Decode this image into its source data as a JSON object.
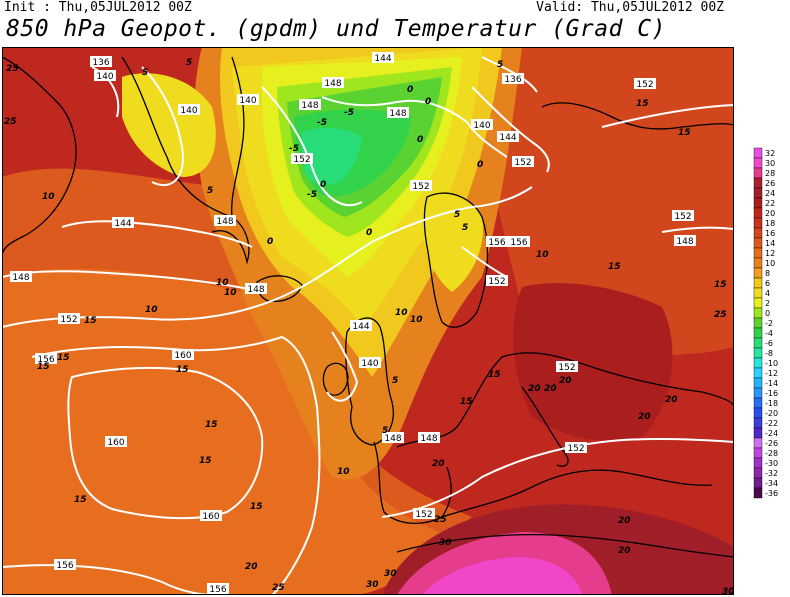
{
  "header": {
    "init": "Init : Thu,05JUL2012 00Z",
    "valid": "Valid: Thu,05JUL2012 00Z",
    "title": "850 hPa Geopot. (gpdm) und Temperatur (Grad C)"
  },
  "colors": {
    "m36": "#4b0a4b",
    "m34": "#6e1e8c",
    "m32": "#8c28aa",
    "m30": "#a032c8",
    "m28": "#be46dc",
    "m26": "#d26ef0",
    "m24": "#5028c8",
    "m22": "#3c3cdc",
    "m20": "#2850f0",
    "m18": "#286ef5",
    "m16": "#2896fa",
    "m14": "#28b4fa",
    "m12": "#28d2fa",
    "m10": "#28e6dc",
    "m8": "#28e6a0",
    "m6": "#28dc78",
    "m4": "#32d24b",
    "m2": "#5ad232",
    "z0": "#a0e61e",
    "p2": "#e6f01e",
    "p4": "#f0dc1e",
    "p6": "#f0c81e",
    "p8": "#f0a01e",
    "p10": "#e6821e",
    "p12": "#e66e1e",
    "p14": "#dc5a1e",
    "p16": "#d2461e",
    "p18": "#c8321e",
    "p20": "#be281e",
    "p22": "#aa1e1e",
    "p24": "#a01e28",
    "p26": "#aa1e32",
    "p28": "#e63c8c",
    "p30": "#f046c8",
    "p32": "#e650e6"
  },
  "legend": {
    "bins": [
      {
        "label": "-36",
        "color": "#4b0a4b"
      },
      {
        "label": "-34",
        "color": "#6e1e8c"
      },
      {
        "label": "-32",
        "color": "#8c28aa"
      },
      {
        "label": "-30",
        "color": "#a032c8"
      },
      {
        "label": "-28",
        "color": "#be46dc"
      },
      {
        "label": "-26",
        "color": "#d26ef0"
      },
      {
        "label": "-24",
        "color": "#5028c8"
      },
      {
        "label": "-22",
        "color": "#3c3cdc"
      },
      {
        "label": "-20",
        "color": "#2850f0"
      },
      {
        "label": "-18",
        "color": "#286ef5"
      },
      {
        "label": "-16",
        "color": "#2896fa"
      },
      {
        "label": "-14",
        "color": "#28b4fa"
      },
      {
        "label": "-12",
        "color": "#28d2fa"
      },
      {
        "label": "-10",
        "color": "#28e6dc"
      },
      {
        "label": "-8",
        "color": "#28e6a0"
      },
      {
        "label": "-6",
        "color": "#28dc78"
      },
      {
        "label": "-4",
        "color": "#32d24b"
      },
      {
        "label": "-2",
        "color": "#5ad232"
      },
      {
        "label": "0",
        "color": "#a0e61e"
      },
      {
        "label": "2",
        "color": "#e6f01e"
      },
      {
        "label": "4",
        "color": "#f0dc1e"
      },
      {
        "label": "6",
        "color": "#f0c81e"
      },
      {
        "label": "8",
        "color": "#f0a01e"
      },
      {
        "label": "10",
        "color": "#e6821e"
      },
      {
        "label": "12",
        "color": "#e66e1e"
      },
      {
        "label": "14",
        "color": "#dc5a1e"
      },
      {
        "label": "16",
        "color": "#d2461e"
      },
      {
        "label": "18",
        "color": "#c8321e"
      },
      {
        "label": "20",
        "color": "#be281e"
      },
      {
        "label": "22",
        "color": "#aa1e1e"
      },
      {
        "label": "24",
        "color": "#a01e28"
      },
      {
        "label": "26",
        "color": "#aa1e32"
      },
      {
        "label": "28",
        "color": "#e63c8c"
      },
      {
        "label": "30",
        "color": "#f046c8"
      },
      {
        "label": "32",
        "color": "#e650e6"
      }
    ]
  },
  "contour_labels": [
    "136",
    "140",
    "144",
    "148",
    "152",
    "156",
    "160"
  ],
  "temperature_labels": [
    "-5",
    "0",
    "5",
    "10",
    "15",
    "20",
    "25",
    "30"
  ],
  "map_labels": {
    "g136a": "136",
    "g136b": "136",
    "g140a": "140",
    "g140b": "140",
    "g140c": "140",
    "g140d": "140",
    "g140e": "140",
    "g144a": "144",
    "g144b": "144",
    "g144c": "144",
    "g144d": "144",
    "g148a": "148",
    "g148b": "148",
    "g148c": "148",
    "g148d": "148",
    "g148e": "148",
    "g148f": "148",
    "g148g": "148",
    "g148h": "148",
    "g148i": "148",
    "g152a": "152",
    "g152b": "152",
    "g152c": "152",
    "g152d": "152",
    "g152e": "152",
    "g152f": "152",
    "g152g": "152",
    "g152h": "152",
    "g152i": "152",
    "g152j": "152",
    "g156a": "156",
    "g156b": "156",
    "g156c": "156",
    "g156d": "156",
    "g156e": "156",
    "g160a": "160",
    "g160b": "160",
    "g160c": "160",
    "tm5a": "-5",
    "tm5b": "-5",
    "tm5c": "-5",
    "tm5d": "-5",
    "t0a": "0",
    "t0b": "0",
    "t0c": "0",
    "t0d": "0",
    "t0e": "0",
    "t0f": "0",
    "t0g": "0",
    "t5a": "5",
    "t5b": "5",
    "t5c": "5",
    "t5d": "5",
    "t5e": "5",
    "t5f": "5",
    "t5g": "5",
    "t5h": "5",
    "t10a": "10",
    "t10b": "10",
    "t10c": "10",
    "t10d": "10",
    "t10e": "10",
    "t10f": "10",
    "t10g": "10",
    "t10h": "10",
    "t15a": "15",
    "t15b": "15",
    "t15c": "15",
    "t15d": "15",
    "t15e": "15",
    "t15f": "15",
    "t15g": "15",
    "t15h": "15",
    "t15i": "15",
    "t15j": "15",
    "t15k": "15",
    "t15l": "15",
    "t15m": "15",
    "t15n": "15",
    "t20a": "20",
    "t20b": "20",
    "t20c": "20",
    "t20d": "20",
    "t20e": "20",
    "t20f": "20",
    "t20g": "20",
    "t20h": "20",
    "t20i": "20",
    "t25a": "25",
    "t25b": "25",
    "t25c": "25",
    "t25d": "25",
    "t25e": "25",
    "t30a": "30",
    "t30b": "30",
    "t30c": "30",
    "t30d": "30"
  }
}
